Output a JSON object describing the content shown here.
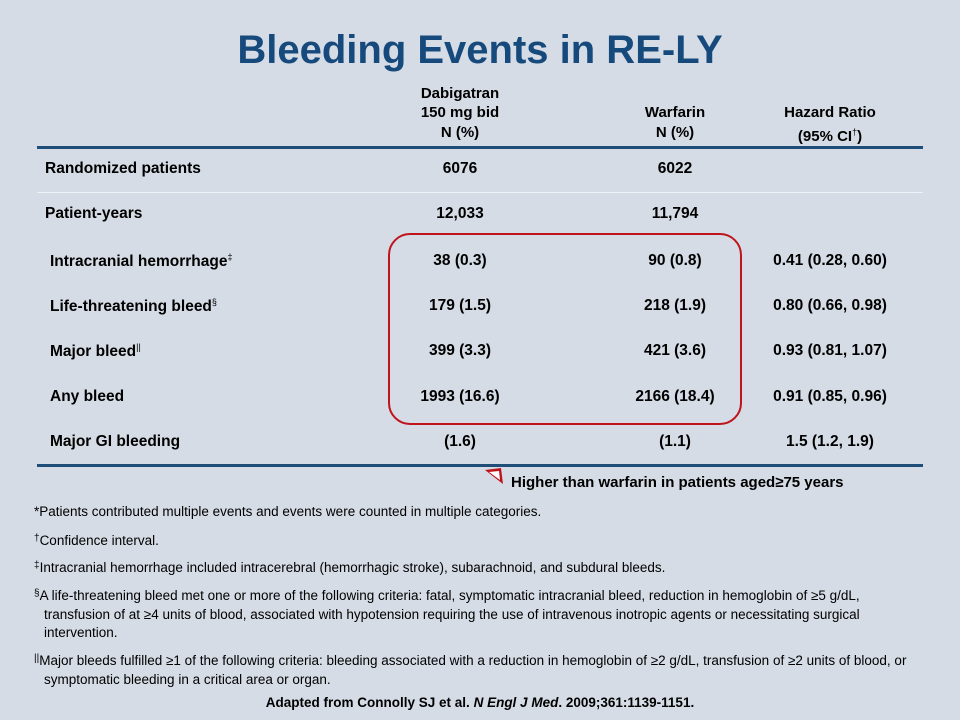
{
  "header": {
    "title": "Bleeding Events in RE-LY"
  },
  "table": {
    "columns": [
      {
        "lines": [
          [
            {
              "text": "Dabigatran"
            }
          ],
          [
            {
              "text": "150 mg bid"
            }
          ],
          [
            {
              "text": "N (%)"
            }
          ]
        ]
      },
      {
        "lines": [
          [
            {
              "text": "Warfarin"
            }
          ],
          [
            {
              "text": "N (%)"
            }
          ]
        ]
      },
      {
        "lines": [
          [
            {
              "text": "Hazard Ratio"
            }
          ],
          [
            {
              "text": "(95% CI"
            },
            {
              "sup": "†"
            },
            {
              "text": ")"
            }
          ]
        ]
      }
    ],
    "rows": [
      {
        "label": "Randomized patients",
        "cells": [
          "6076",
          "6022"
        ]
      },
      {
        "label": "Patient-years",
        "cells": [
          "12,033",
          "11,794"
        ]
      },
      {
        "label": "Intracranial hemorrhage",
        "sup": "‡",
        "cells": [
          "38 (0.3)",
          "90 (0.8)",
          "0.41 (0.28, 0.60)"
        ]
      },
      {
        "label": "Life-threatening bleed",
        "sup": "§",
        "cells": [
          "179 (1.5)",
          "218 (1.9)",
          "0.80 (0.66, 0.98)"
        ]
      },
      {
        "label": "Major bleed",
        "sup": "||",
        "cells": [
          "399 (3.3)",
          "421 (3.6)",
          "0.93 (0.81, 1.07)"
        ]
      },
      {
        "label": "Any bleed",
        "cells": [
          "1993 (16.6)",
          "2166 (18.4)",
          "0.91 (0.85, 0.96)"
        ]
      },
      {
        "label": "Major GI bleeding",
        "cells": [
          "(1.6)",
          "(1.1)",
          "1.5 (1.2, 1.9)"
        ]
      }
    ]
  },
  "callout": "Higher than warfarin in patients aged≥75 years",
  "footnotes": [
    {
      "marker": "*",
      "text": "Patients contributed multiple events and events were counted in multiple categories."
    },
    {
      "marker": "†",
      "text": "Confidence interval."
    },
    {
      "marker": "‡",
      "text": "Intracranial hemorrhage included intracerebral (hemorrhagic stroke), subarachnoid, and subdural bleeds."
    },
    {
      "marker": "§",
      "text": "A life-threatening bleed met one or more of the following criteria: fatal, symptomatic intracranial bleed, reduction in hemoglobin of ≥5 g/dL, transfusion of at ≥4 units of blood, associated with hypotension requiring the use of intravenous inotropic agents or necessitating surgical intervention."
    },
    {
      "marker": "||",
      "text": "Major bleeds fulfilled ≥1 of the following criteria: bleeding associated with a reduction in hemoglobin of ≥2 g/dL, transfusion of ≥2 units of blood, or symptomatic bleeding in a critical area or organ."
    }
  ],
  "source": {
    "before": "Adapted from Connolly SJ et al. ",
    "journal": "N Engl J Med",
    "after": ". 2009;361:1139-1151."
  }
}
